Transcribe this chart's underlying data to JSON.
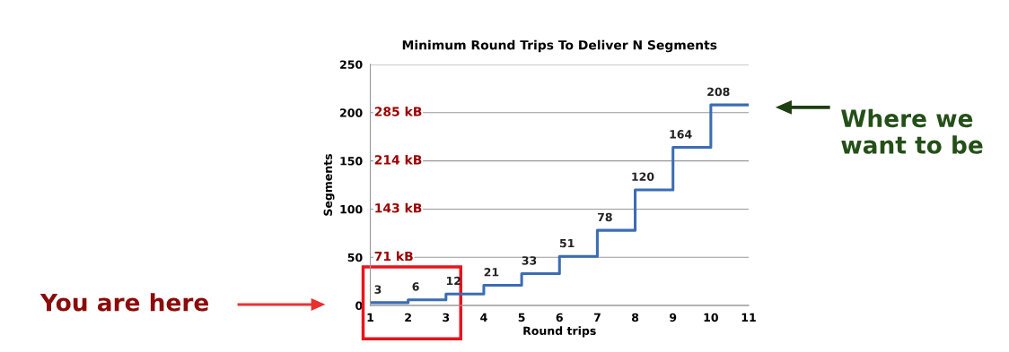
{
  "chart_data": {
    "type": "step",
    "title": "Minimum Round Trips To Deliver N Segments",
    "xlabel": "Round trips",
    "ylabel": "Segments",
    "x": [
      1,
      2,
      3,
      4,
      5,
      6,
      7,
      8,
      9,
      10,
      11
    ],
    "series": [
      {
        "color": "#3b6db3",
        "values": [
          3,
          6,
          12,
          21,
          33,
          51,
          78,
          120,
          164,
          208,
          208
        ],
        "value_labels": [
          "3",
          "6",
          "12",
          "21",
          "33",
          "51",
          "78",
          "120",
          "164",
          "208",
          null
        ]
      }
    ],
    "xlim": [
      1,
      11
    ],
    "xticks": [
      1,
      2,
      3,
      4,
      5,
      6,
      7,
      8,
      9,
      10,
      11
    ],
    "ylim": [
      0,
      250
    ],
    "yticks": [
      0,
      50,
      100,
      150,
      200,
      250
    ],
    "grid": "y",
    "legend": false,
    "marker": "none",
    "line_style": "solid",
    "annotations": [
      "285 kB",
      "214 kB",
      "143 kB",
      "71 kB",
      "You are here",
      "Where we want to be"
    ]
  }
}
